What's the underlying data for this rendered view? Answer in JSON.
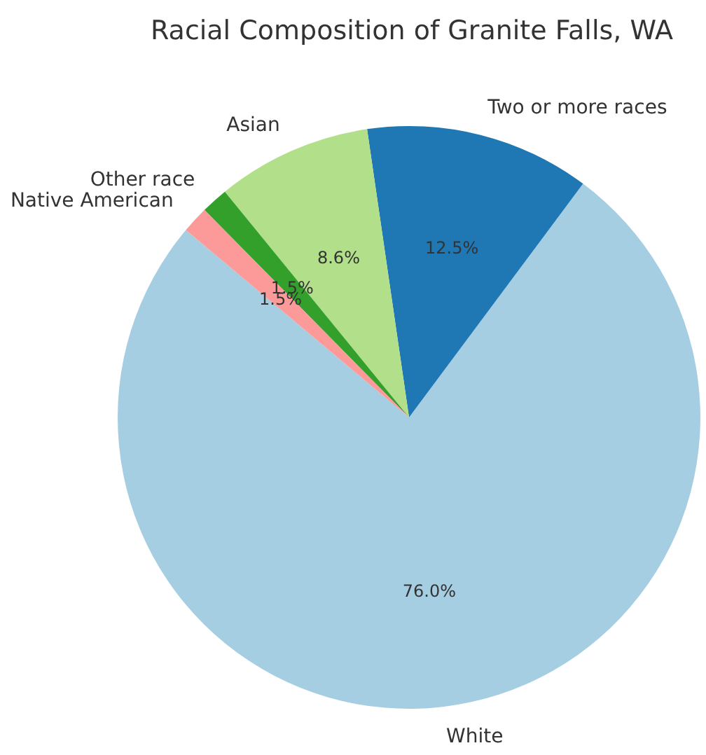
{
  "chart_data": {
    "type": "pie",
    "title": "Racial Composition of Granite Falls, WA",
    "categories": [
      "White",
      "Two or more races",
      "Asian",
      "Other race",
      "Native American"
    ],
    "values": [
      76.0,
      12.5,
      8.6,
      1.5,
      1.5
    ],
    "colors": [
      "#a6cee3",
      "#1f78b4",
      "#b2df8a",
      "#33a02c",
      "#fb9a99"
    ],
    "value_labels": [
      "76.0%",
      "12.5%",
      "8.6%",
      "1.5%",
      "1.5%"
    ]
  }
}
